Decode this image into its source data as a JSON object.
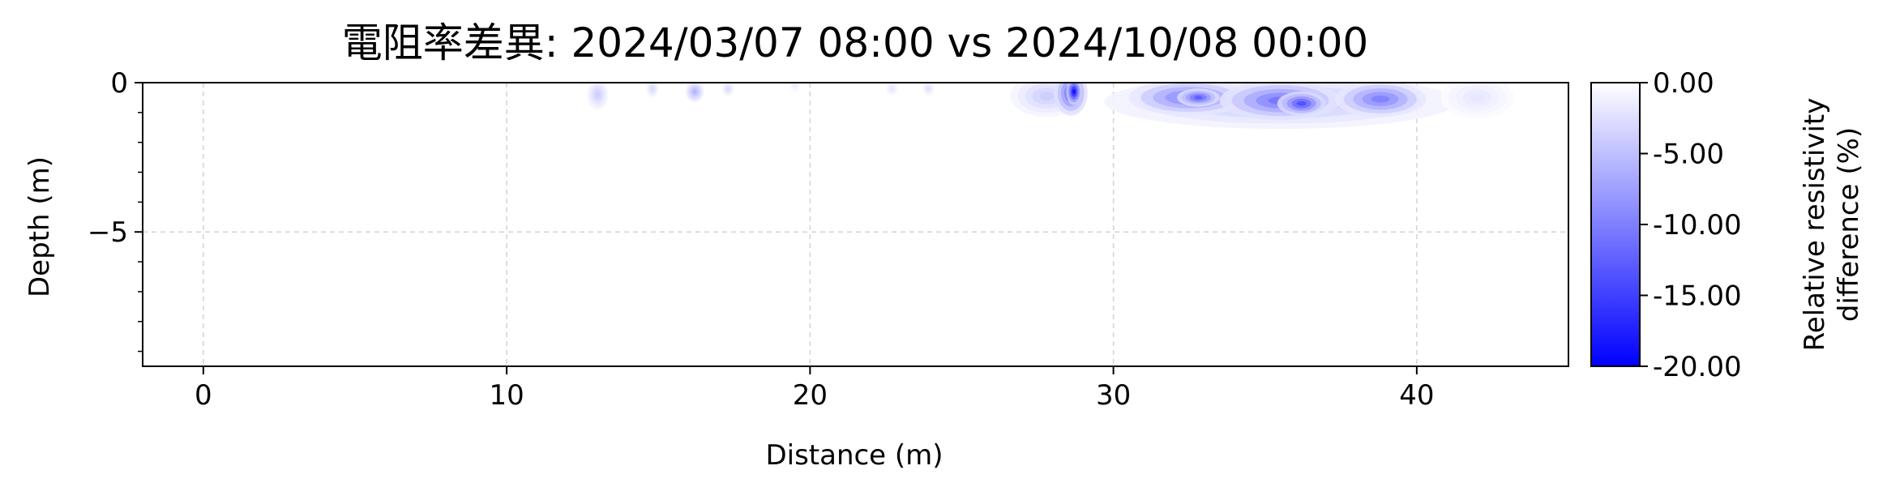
{
  "chart_data": {
    "type": "heatmap",
    "title": "電阻率差異: 2024/03/07 08:00 vs 2024/10/08 00:00",
    "xlabel": "Distance (m)",
    "ylabel": "Depth (m)",
    "xlim": [
      -2,
      45
    ],
    "ylim": [
      -9.5,
      0
    ],
    "x_ticks": [
      0,
      10,
      20,
      30,
      40
    ],
    "x_tick_labels": [
      "0",
      "10",
      "20",
      "30",
      "40"
    ],
    "y_ticks": [
      0,
      -5
    ],
    "y_tick_labels": [
      "0",
      "−5"
    ],
    "grid": true,
    "colorbar": {
      "label_lines": [
        "Relative resistivity",
        "difference (%)"
      ],
      "range": [
        -20,
        0
      ],
      "ticks": [
        0,
        -5,
        -10,
        -15,
        -20
      ],
      "tick_labels": [
        "0.00",
        "-5.00",
        "-10.00",
        "-15.00",
        "-20.00"
      ],
      "color_min": "#0000ff",
      "color_max": "#ffffff"
    },
    "anomalies": [
      {
        "x": 13.0,
        "y": -0.4,
        "rx": 0.35,
        "ry": 0.5,
        "value": -4
      },
      {
        "x": 14.8,
        "y": -0.2,
        "rx": 0.2,
        "ry": 0.3,
        "value": -3
      },
      {
        "x": 16.2,
        "y": -0.3,
        "rx": 0.3,
        "ry": 0.35,
        "value": -6
      },
      {
        "x": 17.3,
        "y": -0.2,
        "rx": 0.2,
        "ry": 0.25,
        "value": -3
      },
      {
        "x": 19.5,
        "y": -0.1,
        "rx": 0.2,
        "ry": 0.2,
        "value": -1.5
      },
      {
        "x": 22.7,
        "y": -0.2,
        "rx": 0.2,
        "ry": 0.25,
        "value": -2
      },
      {
        "x": 23.9,
        "y": -0.2,
        "rx": 0.2,
        "ry": 0.25,
        "value": -2.5
      },
      {
        "x": 27.8,
        "y": -0.45,
        "rx": 1.2,
        "ry": 0.7,
        "value": -4
      },
      {
        "x": 28.6,
        "y": -0.35,
        "rx": 0.55,
        "ry": 0.75,
        "value": -12
      },
      {
        "x": 28.7,
        "y": -0.3,
        "rx": 0.25,
        "ry": 0.45,
        "value": -19
      },
      {
        "x": 35.5,
        "y": -0.65,
        "rx": 5.8,
        "ry": 0.9,
        "value": -5
      },
      {
        "x": 32.5,
        "y": -0.5,
        "rx": 2.0,
        "ry": 0.6,
        "value": -10
      },
      {
        "x": 35.5,
        "y": -0.6,
        "rx": 2.0,
        "ry": 0.65,
        "value": -11
      },
      {
        "x": 38.8,
        "y": -0.55,
        "rx": 1.5,
        "ry": 0.6,
        "value": -10
      },
      {
        "x": 36.2,
        "y": -0.7,
        "rx": 0.8,
        "ry": 0.4,
        "value": -14
      },
      {
        "x": 32.8,
        "y": -0.5,
        "rx": 0.7,
        "ry": 0.3,
        "value": -13
      },
      {
        "x": 42.0,
        "y": -0.5,
        "rx": 1.2,
        "ry": 0.7,
        "value": -2
      }
    ]
  }
}
